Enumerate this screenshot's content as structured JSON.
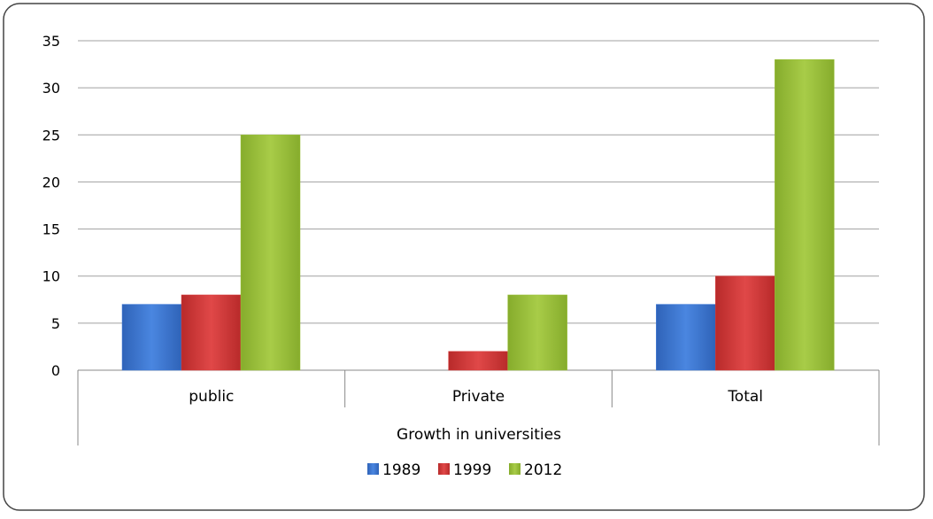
{
  "chart_data": {
    "type": "bar",
    "title": "",
    "xlabel": "Growth in universities",
    "ylabel": "",
    "ylim": [
      0,
      35
    ],
    "yticks": [
      0,
      5,
      10,
      15,
      20,
      25,
      30,
      35
    ],
    "grid": true,
    "legend_position": "bottom",
    "categories": [
      "public",
      "Private",
      "Total"
    ],
    "series": [
      {
        "name": "1989",
        "values": [
          7,
          0,
          7
        ],
        "color": "#3c78d8"
      },
      {
        "name": "1999",
        "values": [
          8,
          2,
          10
        ],
        "color": "#d83a3a"
      },
      {
        "name": "2012",
        "values": [
          25,
          8,
          33
        ],
        "color": "#9bc23c"
      }
    ]
  }
}
